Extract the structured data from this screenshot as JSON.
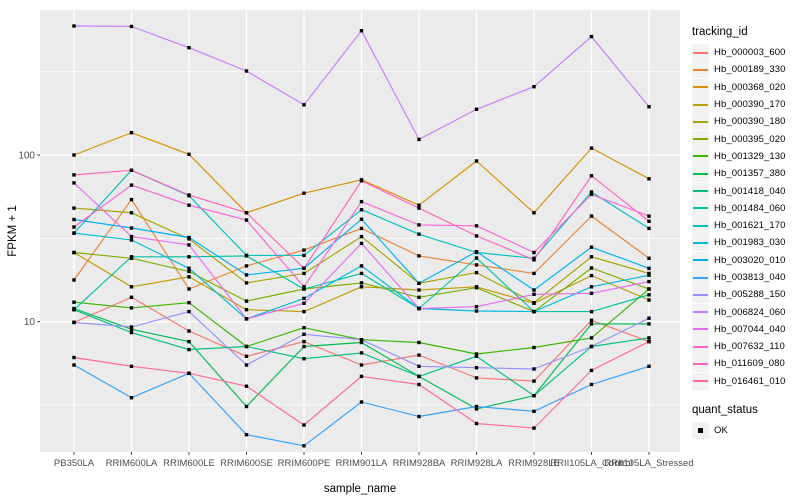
{
  "panel": {
    "bg": "#EBEBEB",
    "grid": "#FFFFFF",
    "tick_color": "#333333",
    "tick_label_color": "#4D4D4D",
    "axis_title_color": "#000000",
    "marker_color": "#000000"
  },
  "legend": {
    "tracking_title": "tracking_id",
    "quant_title": "quant_status",
    "quant_ok_label": "OK",
    "quant_marker_color": "#000000",
    "key_bg": "#F2F2F2"
  },
  "chart_data": {
    "type": "line",
    "title": "",
    "xlabel": "sample_name",
    "ylabel": "FPKM + 1",
    "y_scale": "log10",
    "legend_position": "right",
    "grid": "on",
    "ylim_log10": [
      0.2,
      2.9
    ],
    "y_ticks": [
      {
        "label": "100",
        "value": 100
      },
      {
        "label": "10",
        "value": 10
      }
    ],
    "y_minor_gridlines": [
      316.23,
      31.623,
      3.1623
    ],
    "categories": [
      "PB350LA",
      "RRIM600LA",
      "RRIM600LE",
      "RRIM600SE",
      "RRIM600PE",
      "RRIM901LA",
      "RRIM928BA",
      "RRIM928LA",
      "RRIM928LE",
      "RRII105LA_Control",
      "RRII105LA_Stressed"
    ],
    "series": [
      {
        "name": "Hb_000003_600",
        "color": "#F8766D",
        "values": [
          9.9,
          14.0,
          8.8,
          6.2,
          7.6,
          5.5,
          6.3,
          4.6,
          4.4,
          10.2,
          7.6
        ]
      },
      {
        "name": "Hb_000189_330",
        "color": "#EA8331",
        "values": [
          17.8,
          54,
          15.7,
          21.6,
          26.9,
          36.3,
          24.8,
          21.9,
          19.5,
          43,
          24
        ]
      },
      {
        "name": "Hb_000368_020",
        "color": "#D89000",
        "values": [
          100,
          136,
          101,
          45,
          59,
          71,
          50,
          92,
          45,
          110,
          72
        ]
      },
      {
        "name": "Hb_000390_170",
        "color": "#C09B00",
        "values": [
          26,
          16.2,
          18.6,
          11.8,
          11.5,
          16.2,
          15.5,
          16.2,
          12.9,
          18.9,
          13.5
        ]
      },
      {
        "name": "Hb_000390_180",
        "color": "#A3A500",
        "values": [
          48,
          45,
          31.4,
          17.1,
          19.5,
          32.4,
          17.0,
          19.7,
          13.0,
          24.5,
          19.5
        ]
      },
      {
        "name": "Hb_000395_020",
        "color": "#7CAE00",
        "values": [
          26,
          24,
          20,
          13.3,
          15.7,
          17.1,
          14,
          16,
          11.5,
          21,
          15.7
        ]
      },
      {
        "name": "Hb_001329_130",
        "color": "#39B600",
        "values": [
          13.1,
          12.1,
          13.0,
          7.1,
          9.2,
          7.8,
          7.5,
          6.4,
          7.0,
          8.0,
          15.7
        ]
      },
      {
        "name": "Hb_001357_380",
        "color": "#00BB4E",
        "values": [
          12,
          9.0,
          7.6,
          3.1,
          7.1,
          7.5,
          4.7,
          3.0,
          3.6,
          9.7,
          9.7
        ]
      },
      {
        "name": "Hb_001418_040",
        "color": "#00BF7D",
        "values": [
          11.8,
          8.6,
          6.8,
          7.1,
          6.0,
          6.5,
          4.7,
          6.2,
          3.6,
          7.1,
          8.0
        ]
      },
      {
        "name": "Hb_001484_060",
        "color": "#00C1A3",
        "values": [
          11.8,
          24.5,
          24.5,
          24.8,
          15.7,
          19.5,
          12.0,
          24.1,
          11.5,
          11.5,
          14.5
        ]
      },
      {
        "name": "Hb_001621_170",
        "color": "#00BFC4",
        "values": [
          34,
          81,
          57,
          25,
          25,
          47,
          33.5,
          26,
          24,
          60,
          36.3
        ]
      },
      {
        "name": "Hb_001983_030",
        "color": "#00BBDC",
        "values": [
          34,
          30.9,
          20.9,
          10.4,
          13.8,
          21.6,
          12.0,
          11.6,
          11.5,
          16.2,
          19
        ]
      },
      {
        "name": "Hb_003020_010",
        "color": "#00B0F6",
        "values": [
          41,
          36.5,
          32,
          19.1,
          20.9,
          41.2,
          17.0,
          26.3,
          15.5,
          28,
          20.9
        ]
      },
      {
        "name": "Hb_003813_040",
        "color": "#35A2FF",
        "values": [
          5.5,
          3.5,
          4.9,
          2.1,
          1.8,
          3.3,
          2.7,
          3.1,
          2.9,
          4.2,
          5.4
        ]
      },
      {
        "name": "Hb_005288_150",
        "color": "#9590FF",
        "values": [
          9.9,
          9.3,
          11.5,
          5.5,
          8.4,
          7.8,
          5.4,
          5.3,
          5.2,
          7.1,
          10.5
        ]
      },
      {
        "name": "Hb_006824_060",
        "color": "#C77CFF",
        "values": [
          594,
          590,
          440,
          319,
          200,
          557,
          124,
          188,
          257,
          513,
          195
        ]
      },
      {
        "name": "Hb_007044_040",
        "color": "#E76BF3",
        "values": [
          68,
          32.4,
          28.9,
          10.4,
          12.9,
          29.5,
          12.0,
          12.3,
          14.6,
          14.8,
          17.4
        ]
      },
      {
        "name": "Hb_007632_110",
        "color": "#FA62DB",
        "values": [
          37,
          66,
          50,
          40.7,
          16.2,
          52.5,
          38.1,
          37.6,
          26,
          58,
          43
        ]
      },
      {
        "name": "Hb_011609_080",
        "color": "#FF62BC",
        "values": [
          76,
          81,
          57.5,
          45,
          20.9,
          70,
          48,
          32.7,
          23.5,
          75,
          40
        ]
      },
      {
        "name": "Hb_016461_010",
        "color": "#FF6A98",
        "values": [
          6.1,
          5.4,
          4.9,
          4.1,
          2.4,
          4.7,
          4.2,
          2.45,
          2.3,
          5.1,
          7.6
        ]
      }
    ]
  }
}
